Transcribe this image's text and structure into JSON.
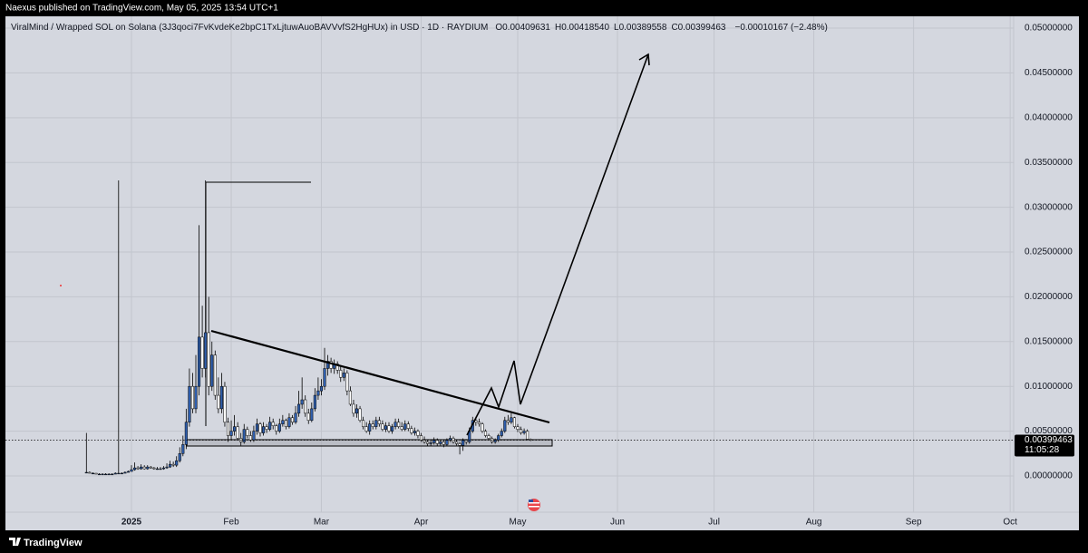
{
  "chart_data": {
    "type": "candlestick",
    "publisher": "Naexus published on TradingView.com, May 05, 2025 13:54 UTC+1",
    "title": "ViralMind / Wrapped SOL on Solana (3J3qoci7FvKvdeKe2bpC1TxLjtuwAuoBAVVvfS2HgHUx) in USD · 1D · RAYDIUM",
    "ohlc_legend": [
      "O0.00409631",
      "H0.00418540",
      "L0.00389558",
      "C0.00399463",
      "−0.00010167 (−2.48%)"
    ],
    "brand": "TradingView",
    "last_price_label": "0.00399463",
    "countdown": "11:05:28",
    "colors": {
      "up": "#2f5fae",
      "down": "#ffffff",
      "outline": "#000000"
    },
    "grid": true,
    "ylim": [
      -0.00405,
      0.05132
    ],
    "yticks": [
      {
        "value": 0,
        "label": "0.00000000"
      },
      {
        "value": 0.005,
        "label": "0.00500000"
      },
      {
        "value": 0.01,
        "label": "0.01000000"
      },
      {
        "value": 0.015,
        "label": "0.01500000"
      },
      {
        "value": 0.02,
        "label": "0.02000000"
      },
      {
        "value": 0.025,
        "label": "0.02500000"
      },
      {
        "value": 0.03,
        "label": "0.03000000"
      },
      {
        "value": 0.035,
        "label": "0.03500000"
      },
      {
        "value": 0.04,
        "label": "0.04000000"
      },
      {
        "value": 0.045,
        "label": "0.04500000"
      },
      {
        "value": 0.05,
        "label": "0.05000000"
      }
    ],
    "xticks": [
      {
        "value": "2025-01",
        "label": "2025"
      },
      {
        "value": "2025-02",
        "label": "Feb"
      },
      {
        "value": "2025-03",
        "label": "Mar"
      },
      {
        "value": "2025-04",
        "label": "Apr"
      },
      {
        "value": "2025-05",
        "label": "May"
      },
      {
        "value": "2025-06",
        "label": "Jun"
      },
      {
        "value": "2025-07",
        "label": "Jul"
      },
      {
        "value": "2025-08",
        "label": "Aug"
      },
      {
        "value": "2025-09",
        "label": "Sep"
      },
      {
        "value": "2025-10",
        "label": "Oct"
      }
    ],
    "open": [
      0.0004,
      0.0004,
      0.0003,
      0.0003,
      0.0002,
      0.0002,
      0.0002,
      0.0002,
      0.0002,
      0.0002,
      0.0003,
      0.0003,
      0.0003,
      0.0004,
      0.0005,
      0.0007,
      0.0009,
      0.0008,
      0.001,
      0.0008,
      0.001,
      0.0009,
      0.0008,
      0.0008,
      0.0008,
      0.0009,
      0.001,
      0.0013,
      0.0012,
      0.0017,
      0.0025,
      0.0035,
      0.006,
      0.01,
      0.0075,
      0.01,
      0.0155,
      0.012,
      0.016,
      0.01,
      0.0135,
      0.009,
      0.0075,
      0.01,
      0.006,
      0.0045,
      0.005,
      0.0055,
      0.0042,
      0.0038,
      0.0052,
      0.0045,
      0.004,
      0.005,
      0.0058,
      0.0048,
      0.0055,
      0.0052,
      0.006,
      0.0056,
      0.005,
      0.0058,
      0.0062,
      0.0055,
      0.0065,
      0.006,
      0.007,
      0.008,
      0.0085,
      0.007,
      0.0062,
      0.0075,
      0.009,
      0.0095,
      0.01,
      0.012,
      0.0128,
      0.012,
      0.0125,
      0.0118,
      0.011,
      0.0115,
      0.0095,
      0.008,
      0.007,
      0.0075,
      0.0062,
      0.0055,
      0.005,
      0.0058,
      0.0055,
      0.0062,
      0.0058,
      0.0052,
      0.0056,
      0.005,
      0.0055,
      0.006,
      0.0055,
      0.0052,
      0.0058,
      0.0053,
      0.0048,
      0.005,
      0.0045,
      0.004,
      0.0038,
      0.0036,
      0.0037,
      0.004,
      0.0036,
      0.0038,
      0.0035,
      0.004,
      0.0042,
      0.0038,
      0.0036,
      0.0034,
      0.004,
      0.0038,
      0.005,
      0.0062,
      0.006,
      0.0058,
      0.005,
      0.0045,
      0.0042,
      0.0038,
      0.004,
      0.0045,
      0.005,
      0.0062,
      0.006,
      0.0065,
      0.0055,
      0.0052,
      0.0048,
      0.005,
      0.00409631
    ],
    "high": [
      0.0048,
      0.0005,
      0.0004,
      0.0003,
      0.0003,
      0.0003,
      0.0003,
      0.0003,
      0.0003,
      0.0004,
      0.033,
      0.0004,
      0.0005,
      0.0006,
      0.0012,
      0.0015,
      0.0011,
      0.0013,
      0.0012,
      0.0012,
      0.0011,
      0.001,
      0.001,
      0.001,
      0.0011,
      0.0014,
      0.0017,
      0.0016,
      0.0022,
      0.0032,
      0.0045,
      0.0075,
      0.012,
      0.0115,
      0.0135,
      0.028,
      0.019,
      0.033,
      0.02,
      0.015,
      0.014,
      0.011,
      0.0115,
      0.0105,
      0.0065,
      0.0062,
      0.0068,
      0.006,
      0.0048,
      0.0058,
      0.0055,
      0.005,
      0.0056,
      0.0064,
      0.006,
      0.006,
      0.0058,
      0.0066,
      0.0064,
      0.0058,
      0.0064,
      0.0068,
      0.0064,
      0.007,
      0.0068,
      0.0078,
      0.0095,
      0.011,
      0.009,
      0.0075,
      0.0082,
      0.0098,
      0.011,
      0.0108,
      0.0143,
      0.0135,
      0.0132,
      0.013,
      0.0128,
      0.0122,
      0.012,
      0.0118,
      0.01,
      0.0085,
      0.008,
      0.0078,
      0.0066,
      0.006,
      0.0062,
      0.0062,
      0.0066,
      0.0066,
      0.0062,
      0.006,
      0.006,
      0.0058,
      0.0064,
      0.0064,
      0.006,
      0.0062,
      0.0061,
      0.0056,
      0.0054,
      0.0052,
      0.0048,
      0.0044,
      0.0041,
      0.004,
      0.0043,
      0.0042,
      0.004,
      0.0041,
      0.0042,
      0.0045,
      0.0044,
      0.004,
      0.0038,
      0.0042,
      0.0041,
      0.0054,
      0.0066,
      0.0066,
      0.0064,
      0.006,
      0.0052,
      0.0047,
      0.0044,
      0.0042,
      0.0047,
      0.0053,
      0.0066,
      0.0068,
      0.007,
      0.0066,
      0.0058,
      0.0055,
      0.0053,
      0.0052,
      0.0041854
    ],
    "low": [
      0.0003,
      0.0003,
      0.0002,
      0.0002,
      0.0001,
      0.0001,
      0.0001,
      0.0001,
      0.0001,
      0.0002,
      0.0002,
      0.0002,
      0.0003,
      0.0004,
      0.0005,
      0.0006,
      0.0007,
      0.0007,
      0.0007,
      0.0007,
      0.0008,
      0.0007,
      0.0007,
      0.0007,
      0.0007,
      0.0008,
      0.0009,
      0.001,
      0.001,
      0.0015,
      0.0022,
      0.003,
      0.0055,
      0.007,
      0.007,
      0.009,
      0.011,
      0.011,
      0.009,
      0.0095,
      0.0085,
      0.007,
      0.007,
      0.0055,
      0.0038,
      0.004,
      0.0045,
      0.004,
      0.0034,
      0.0036,
      0.0042,
      0.0038,
      0.0038,
      0.0046,
      0.0044,
      0.0045,
      0.0048,
      0.005,
      0.0052,
      0.0046,
      0.0048,
      0.0055,
      0.0052,
      0.0053,
      0.0057,
      0.0058,
      0.0066,
      0.0075,
      0.0066,
      0.0058,
      0.006,
      0.0072,
      0.0085,
      0.009,
      0.0096,
      0.0112,
      0.0115,
      0.0114,
      0.0114,
      0.0105,
      0.0106,
      0.009,
      0.0078,
      0.0066,
      0.0065,
      0.006,
      0.0052,
      0.0048,
      0.0046,
      0.0052,
      0.0052,
      0.0055,
      0.005,
      0.0049,
      0.0048,
      0.0047,
      0.0052,
      0.0053,
      0.005,
      0.005,
      0.005,
      0.0046,
      0.0045,
      0.0042,
      0.0038,
      0.0036,
      0.0033,
      0.0033,
      0.0035,
      0.0033,
      0.0034,
      0.0032,
      0.0033,
      0.0038,
      0.0036,
      0.0034,
      0.0024,
      0.0028,
      0.0035,
      0.0036,
      0.0048,
      0.0056,
      0.0055,
      0.0048,
      0.0043,
      0.004,
      0.0036,
      0.0036,
      0.0038,
      0.0043,
      0.0048,
      0.0057,
      0.0058,
      0.0053,
      0.0049,
      0.0046,
      0.0046,
      0.004,
      0.00389558
    ],
    "close": [
      0.0004,
      0.0003,
      0.0003,
      0.0002,
      0.0002,
      0.0002,
      0.0002,
      0.0002,
      0.0002,
      0.0003,
      0.0003,
      0.0003,
      0.0004,
      0.0005,
      0.0007,
      0.0009,
      0.0008,
      0.001,
      0.0008,
      0.001,
      0.0009,
      0.0008,
      0.0008,
      0.0008,
      0.0009,
      0.001,
      0.0013,
      0.0012,
      0.0017,
      0.0025,
      0.0035,
      0.006,
      0.01,
      0.0075,
      0.01,
      0.0155,
      0.012,
      0.016,
      0.01,
      0.0135,
      0.009,
      0.0075,
      0.01,
      0.006,
      0.0045,
      0.005,
      0.0055,
      0.0042,
      0.0038,
      0.0052,
      0.0045,
      0.004,
      0.005,
      0.0058,
      0.0048,
      0.0055,
      0.0052,
      0.006,
      0.0056,
      0.005,
      0.0058,
      0.0062,
      0.0055,
      0.0065,
      0.006,
      0.007,
      0.008,
      0.0085,
      0.007,
      0.0062,
      0.0075,
      0.009,
      0.0095,
      0.01,
      0.012,
      0.0128,
      0.012,
      0.0125,
      0.0118,
      0.011,
      0.0115,
      0.0095,
      0.008,
      0.007,
      0.0075,
      0.0062,
      0.0055,
      0.005,
      0.0058,
      0.0055,
      0.0062,
      0.0058,
      0.0052,
      0.0056,
      0.005,
      0.0055,
      0.006,
      0.0055,
      0.0052,
      0.0058,
      0.0053,
      0.0048,
      0.005,
      0.0045,
      0.004,
      0.0038,
      0.0036,
      0.0037,
      0.004,
      0.0036,
      0.0038,
      0.0035,
      0.004,
      0.0042,
      0.0038,
      0.0036,
      0.0034,
      0.004,
      0.0038,
      0.005,
      0.0062,
      0.006,
      0.0058,
      0.005,
      0.0045,
      0.0042,
      0.0038,
      0.004,
      0.0045,
      0.005,
      0.0062,
      0.006,
      0.0065,
      0.0055,
      0.0052,
      0.0048,
      0.005,
      0.0041,
      0.00399463
    ]
  }
}
